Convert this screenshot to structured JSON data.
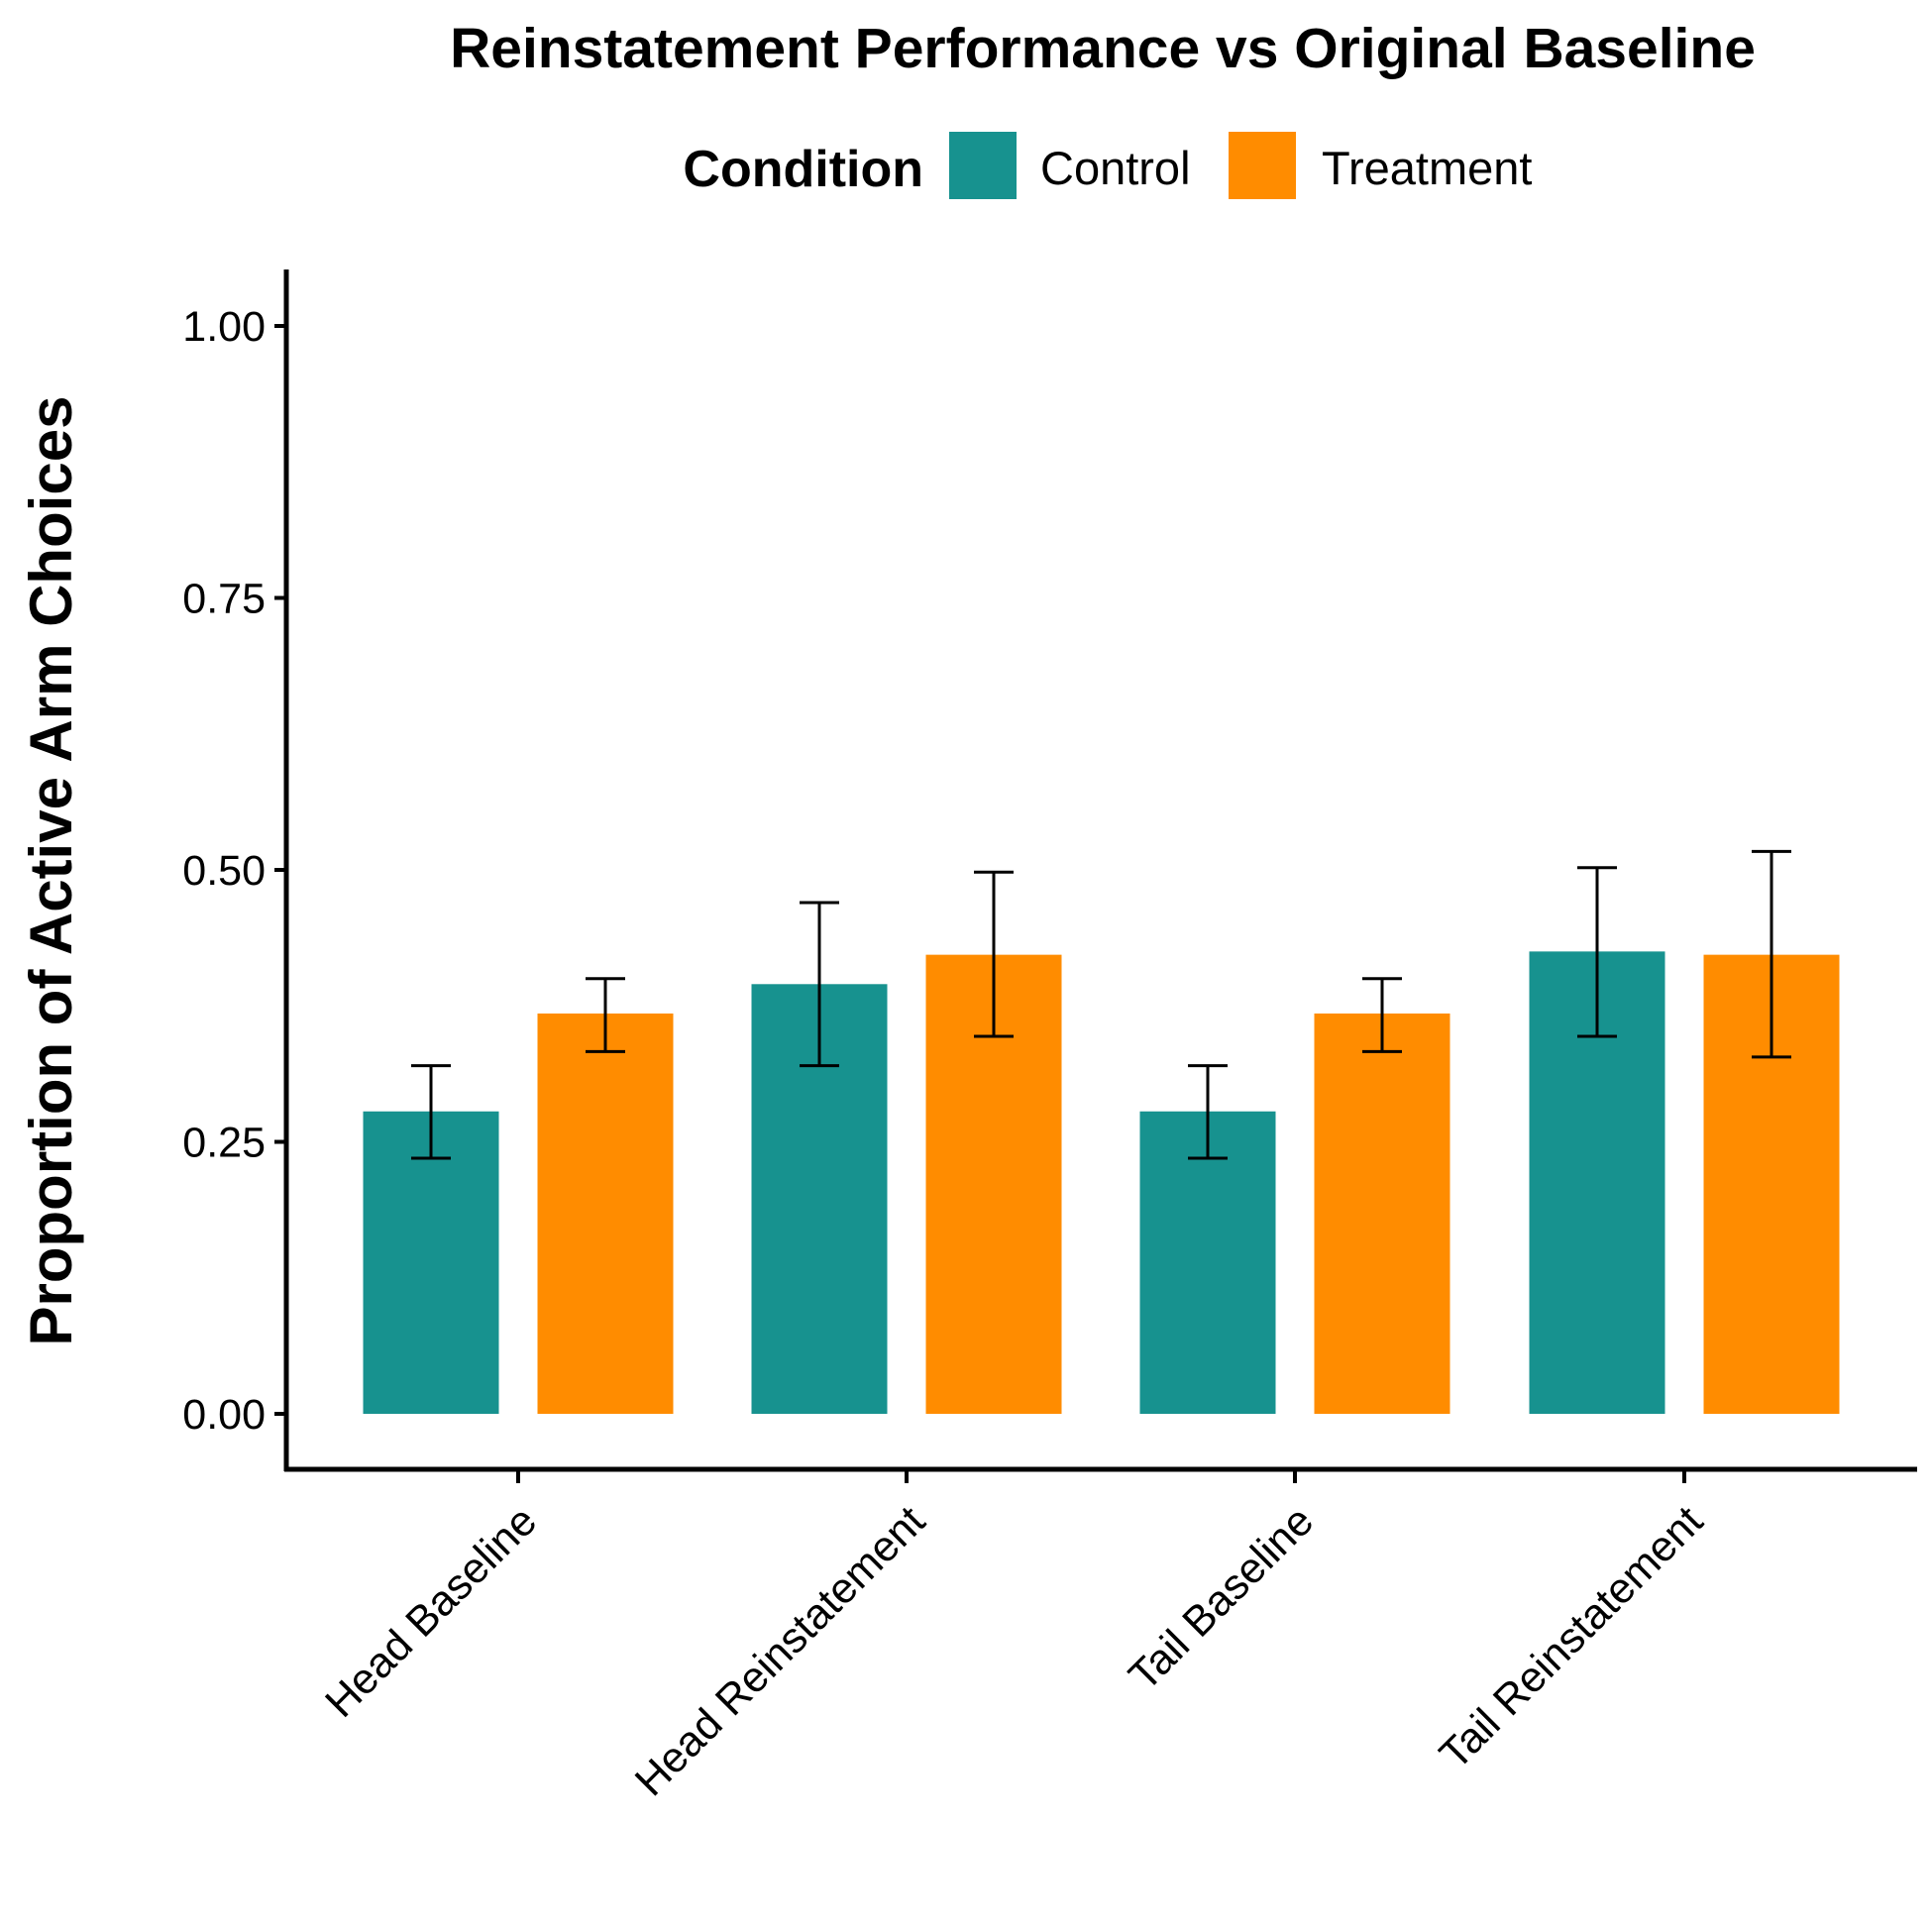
{
  "chart_data": {
    "type": "bar",
    "title": "Reinstatement Performance vs Original Baseline",
    "xlabel": "",
    "ylabel": "Proportion of Active Arm Choices",
    "legend_title": "Condition",
    "legend_position": "top",
    "grid": false,
    "ylim": [
      -0.05,
      1.05
    ],
    "yticks": [
      0.0,
      0.25,
      0.5,
      0.75,
      1.0
    ],
    "ytick_labels": [
      "0.00",
      "0.25",
      "0.50",
      "0.75",
      "1.00"
    ],
    "categories": [
      "Head Baseline",
      "Head Reinstatement",
      "Tail Baseline",
      "Tail Reinstatement"
    ],
    "series": [
      {
        "name": "Control",
        "color": "#17928f",
        "values": [
          0.278,
          0.395,
          0.278,
          0.425
        ],
        "error_low": [
          0.235,
          0.32,
          0.235,
          0.347
        ],
        "error_high": [
          0.32,
          0.47,
          0.32,
          0.502
        ]
      },
      {
        "name": "Treatment",
        "color": "#ff8c00",
        "values": [
          0.368,
          0.422,
          0.368,
          0.422
        ],
        "error_low": [
          0.333,
          0.347,
          0.333,
          0.328
        ],
        "error_high": [
          0.4,
          0.498,
          0.4,
          0.517
        ]
      }
    ]
  }
}
